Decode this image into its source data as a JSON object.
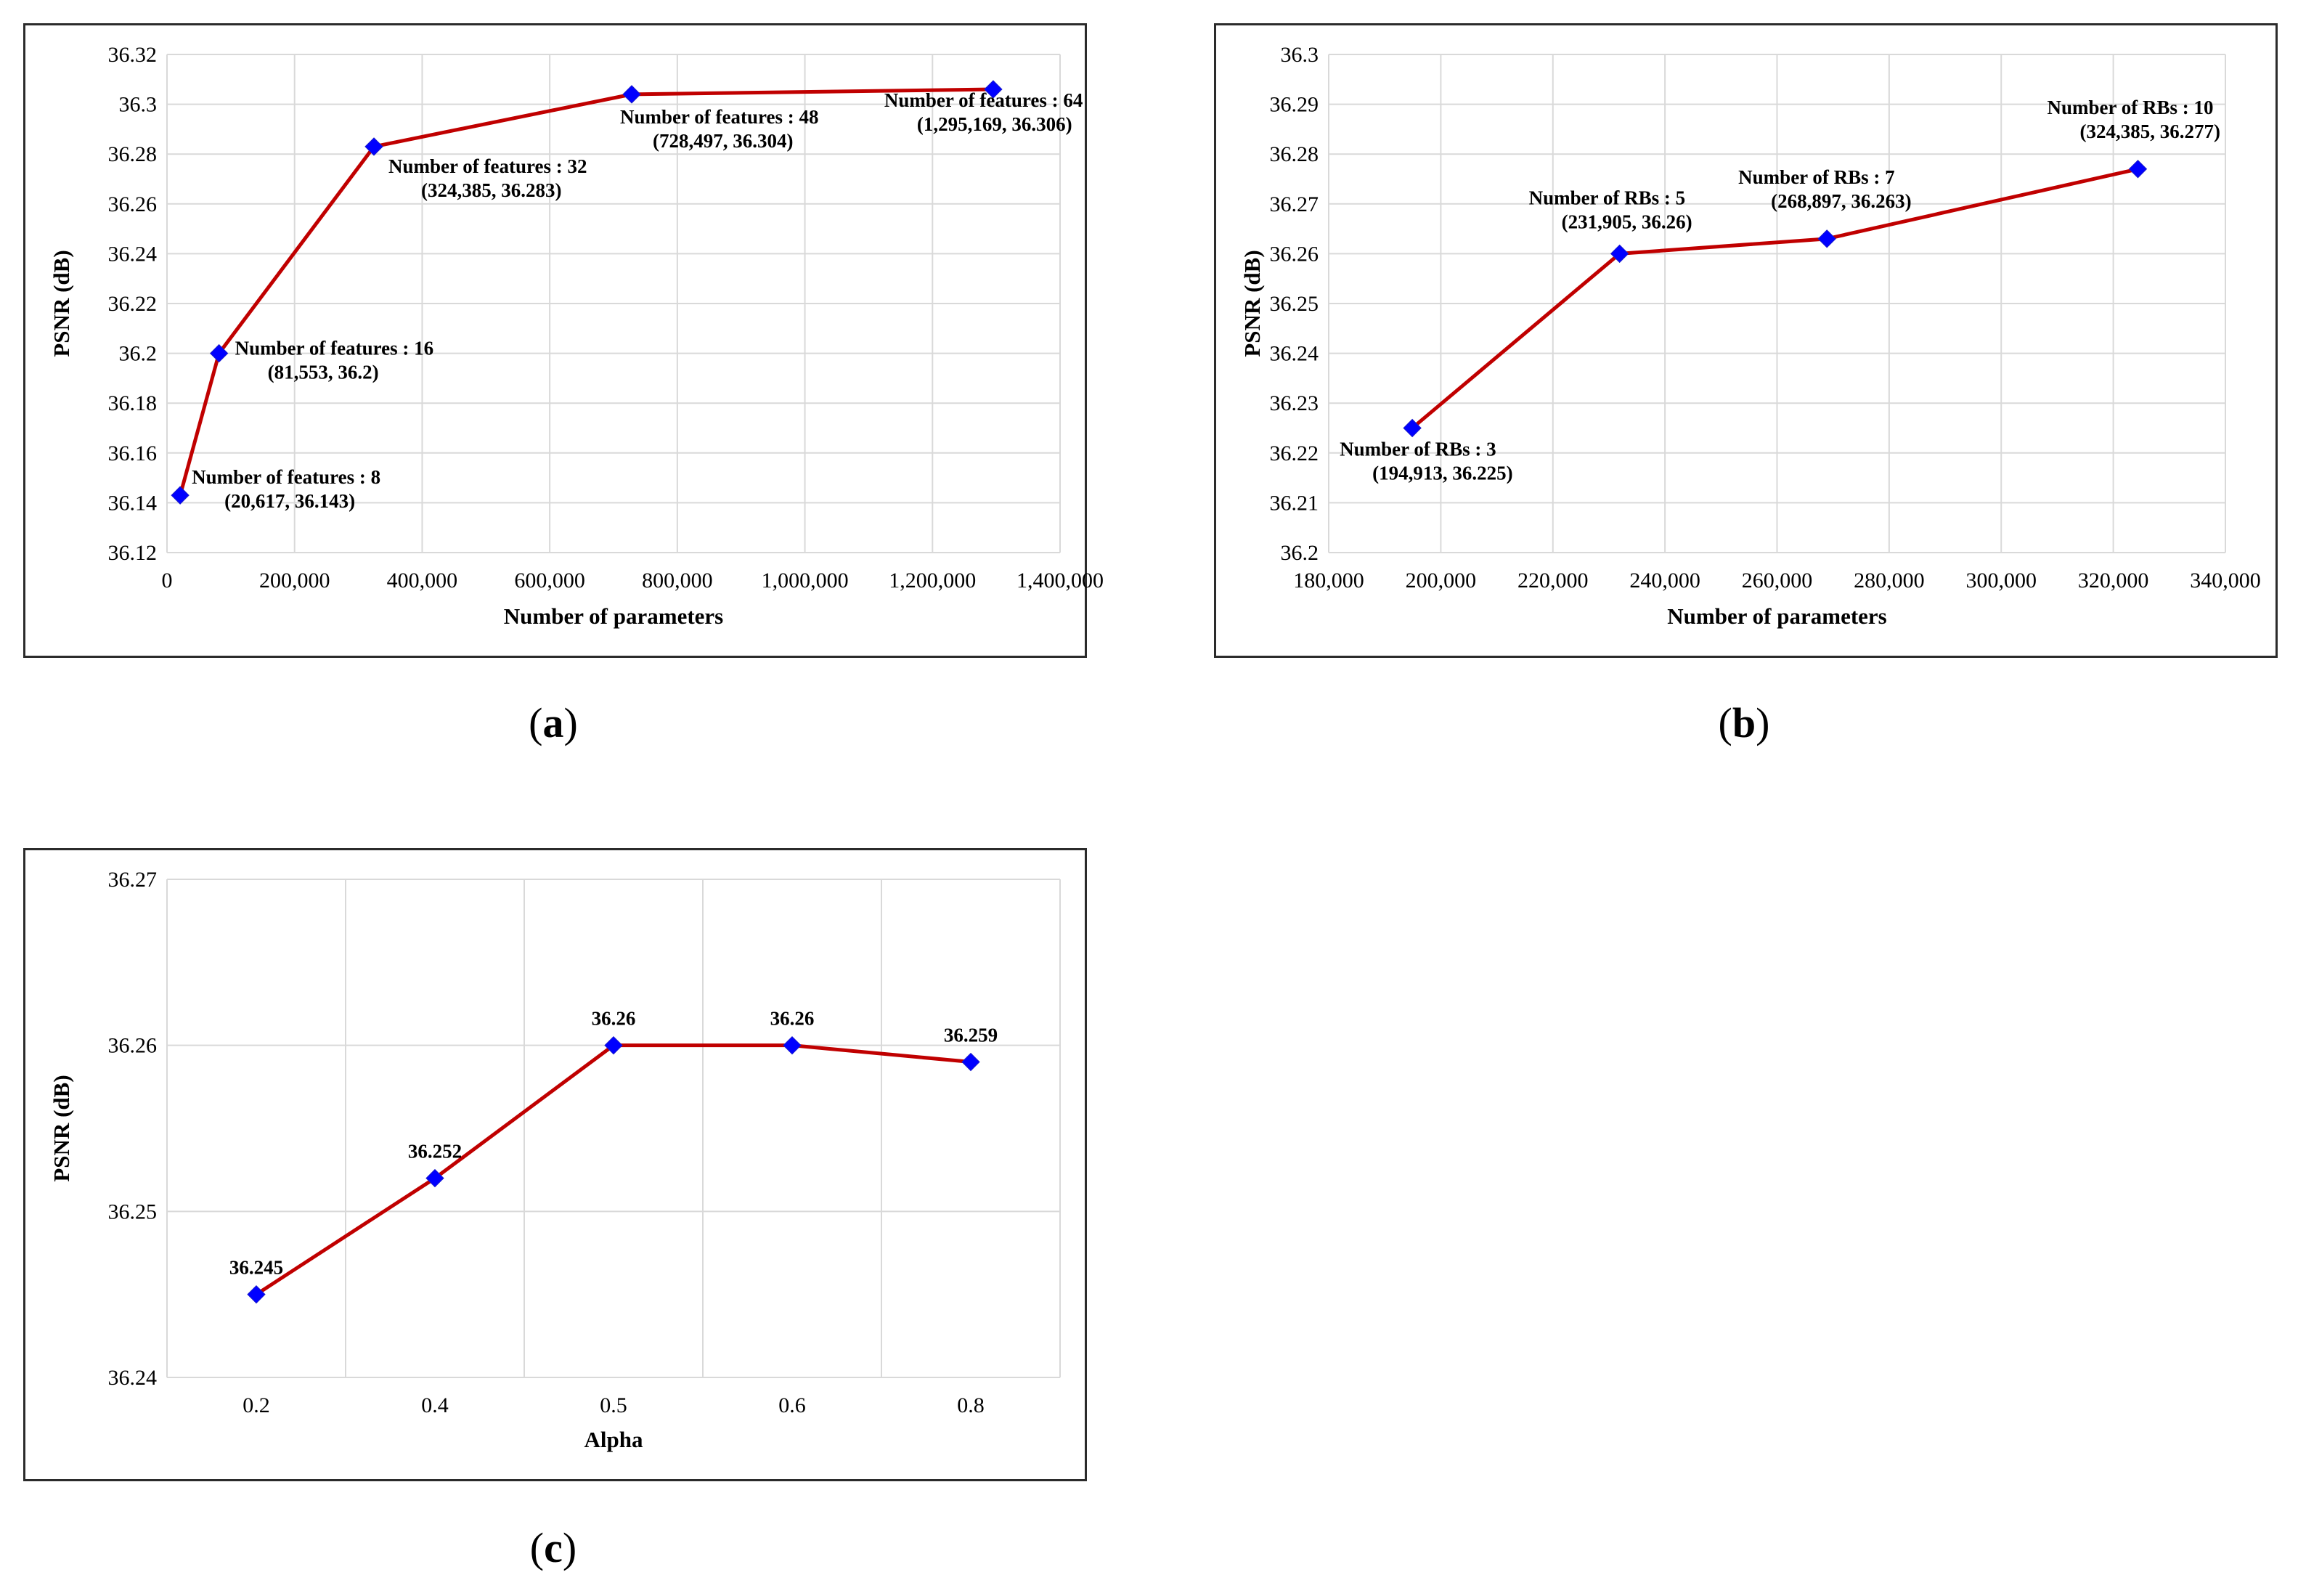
{
  "chart_data": [
    {
      "id": "a",
      "type": "line",
      "caption_letter": "a",
      "xlabel": "Number of parameters",
      "ylabel": "PSNR (dB)",
      "xlim": [
        0,
        1400000
      ],
      "ylim": [
        36.12,
        36.32
      ],
      "x_ticks": [
        "0",
        "200,000",
        "400,000",
        "600,000",
        "800,000",
        "1,000,000",
        "1,200,000",
        "1,400,000"
      ],
      "y_ticks": [
        "36.12",
        "36.14",
        "36.16",
        "36.18",
        "36.2",
        "36.22",
        "36.24",
        "36.26",
        "36.28",
        "36.3",
        "36.32"
      ],
      "grid": true,
      "line_color": "#c00000",
      "marker_color": "#0000ff",
      "points": [
        {
          "x": 20617,
          "y": 36.143,
          "label1": "Number of features : 8",
          "label2": "(20,617, 36.143)"
        },
        {
          "x": 81553,
          "y": 36.2,
          "label1": "Number of features : 16",
          "label2": "(81,553, 36.2)"
        },
        {
          "x": 324385,
          "y": 36.283,
          "label1": "Number of features : 32",
          "label2": "(324,385, 36.283)"
        },
        {
          "x": 728497,
          "y": 36.304,
          "label1": "Number of features : 48",
          "label2": "(728,497, 36.304)"
        },
        {
          "x": 1295169,
          "y": 36.306,
          "label1": "Number of features : 64",
          "label2": "(1,295,169, 36.306)"
        }
      ]
    },
    {
      "id": "b",
      "type": "line",
      "caption_letter": "b",
      "xlabel": "Number of parameters",
      "ylabel": "PSNR (dB)",
      "xlim": [
        180000,
        340000
      ],
      "ylim": [
        36.2,
        36.3
      ],
      "x_ticks": [
        "180,000",
        "200,000",
        "220,000",
        "240,000",
        "260,000",
        "280,000",
        "300,000",
        "320,000",
        "340,000"
      ],
      "y_ticks": [
        "36.2",
        "36.21",
        "36.22",
        "36.23",
        "36.24",
        "36.25",
        "36.26",
        "36.27",
        "36.28",
        "36.29",
        "36.3"
      ],
      "grid": true,
      "line_color": "#c00000",
      "marker_color": "#0000ff",
      "points": [
        {
          "x": 194913,
          "y": 36.225,
          "label1": "Number of RBs : 3",
          "label2": "(194,913, 36.225)"
        },
        {
          "x": 231905,
          "y": 36.26,
          "label1": "Number of RBs : 5",
          "label2": "(231,905, 36.26)"
        },
        {
          "x": 268897,
          "y": 36.263,
          "label1": "Number of RBs : 7",
          "label2": "(268,897, 36.263)"
        },
        {
          "x": 324385,
          "y": 36.277,
          "label1": "Number of RBs : 10",
          "label2": "(324,385, 36.277)"
        }
      ]
    },
    {
      "id": "c",
      "type": "line",
      "caption_letter": "c",
      "xlabel": "Alpha",
      "ylabel": "PSNR (dB)",
      "ylim": [
        36.24,
        36.27
      ],
      "categories": [
        "0.2",
        "0.4",
        "0.5",
        "0.6",
        "0.8"
      ],
      "y_ticks": [
        "36.24",
        "36.25",
        "36.26",
        "36.27"
      ],
      "grid": true,
      "line_color": "#c00000",
      "marker_color": "#0000ff",
      "values": [
        36.245,
        36.252,
        36.26,
        36.26,
        36.259
      ],
      "data_labels": [
        "36.245",
        "36.252",
        "36.26",
        "36.26",
        "36.259"
      ]
    }
  ]
}
